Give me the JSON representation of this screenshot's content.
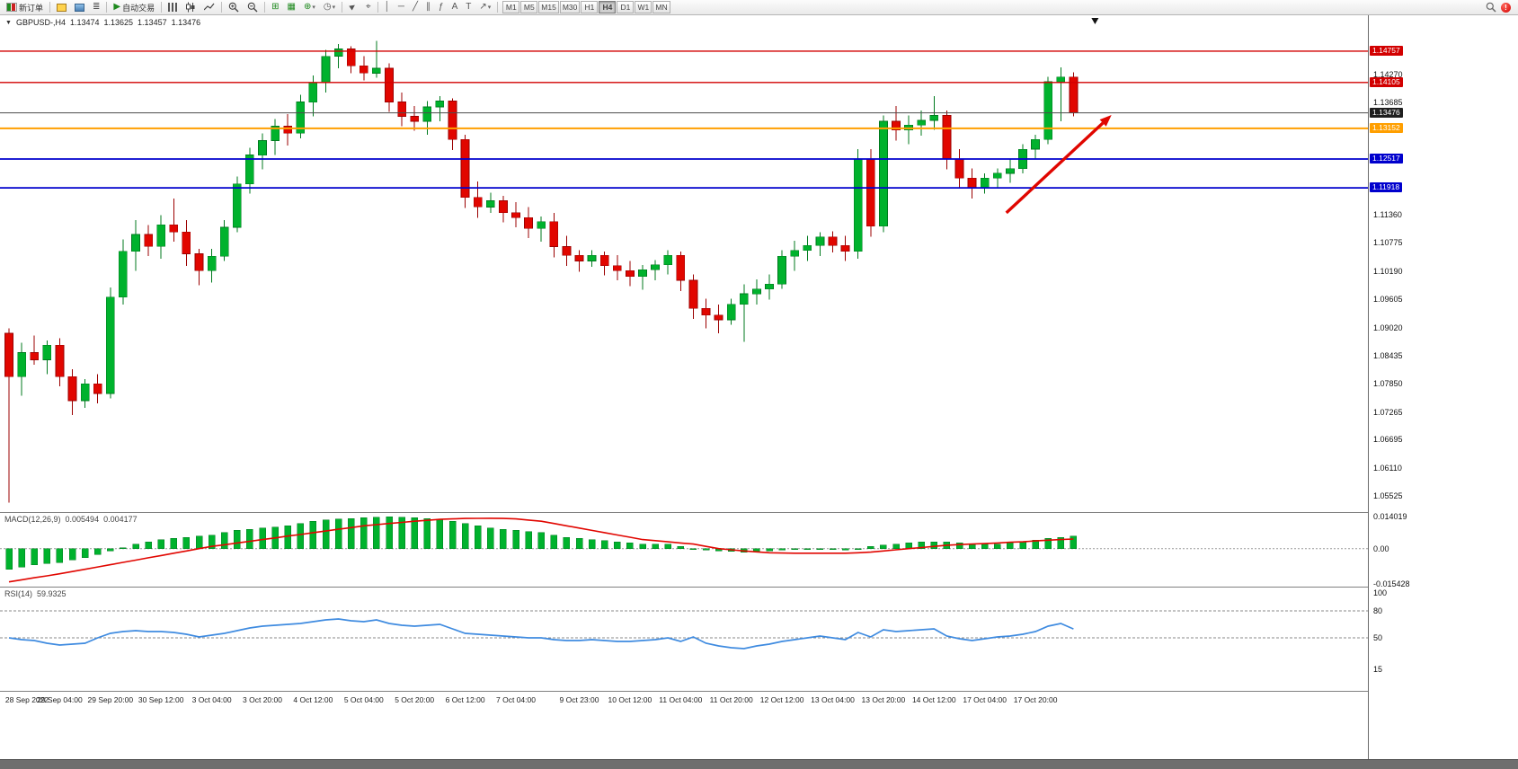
{
  "icons": {
    "collapse": "▼",
    "autotrading_play": "▶",
    "tile": "⊞",
    "grid": "▦",
    "add_indicator": "⊕",
    "clock": "◷",
    "cursor": "►",
    "crosshair": "⌖",
    "vline": "│",
    "hline": "─",
    "trendline": "╱",
    "channel": "∥",
    "fibonacci": "ƒ",
    "text_tool": "A",
    "label_tool": "T",
    "arrow_tool": "↗",
    "caret": "▾",
    "navigator": "≣",
    "alert": "!"
  },
  "toolbar": {
    "new_order_label": "新订单",
    "autotrading_label": "自动交易",
    "timeframes": [
      "M1",
      "M5",
      "M15",
      "M30",
      "H1",
      "H4",
      "D1",
      "W1",
      "MN"
    ],
    "active_timeframe": "H4"
  },
  "header": {
    "symbol": "GBPUSD-,H4",
    "open": "1.13474",
    "high": "1.13625",
    "low": "1.13457",
    "close": "1.13476"
  },
  "chart_data": {
    "type": "candlestick",
    "symbol": "GBPUSD-",
    "timeframe": "H4",
    "ohlc_header": {
      "open": 1.13474,
      "high": 1.13625,
      "low": 1.13457,
      "close": 1.13476
    },
    "y_max": 1.155,
    "y_min": 1.0519,
    "axis_ticks": [
      "1.14270",
      "1.13685",
      "1.11360",
      "1.10775",
      "1.10190",
      "1.09605",
      "1.09020",
      "1.08435",
      "1.07850",
      "1.07265",
      "1.06695",
      "1.06110",
      "1.05525"
    ],
    "hlines": [
      {
        "price": 1.14757,
        "label": "1.14757",
        "line_color": "#d20000",
        "box_color": "#d20000",
        "width": 1.4,
        "current": false
      },
      {
        "price": 1.14105,
        "label": "1.14105",
        "line_color": "#d20000",
        "box_color": "#d20000",
        "width": 1.4,
        "current": false
      },
      {
        "price": 1.13476,
        "label": "1.13476",
        "line_color": "#4d4d4d",
        "box_color": "#1f1f1f",
        "width": 1,
        "current": true
      },
      {
        "price": 1.13152,
        "label": "1.13152",
        "line_color": "#ff9f00",
        "box_color": "#ff9f00",
        "width": 2,
        "current": false
      },
      {
        "price": 1.12517,
        "label": "1.12517",
        "line_color": "#0000cd",
        "box_color": "#0000cd",
        "width": 1.8,
        "current": false
      },
      {
        "price": 1.11918,
        "label": "1.11918",
        "line_color": "#0000cd",
        "box_color": "#0000cd",
        "width": 1.8,
        "current": false
      }
    ],
    "candles": [
      [
        1.089,
        1.09,
        1.0539,
        1.08
      ],
      [
        1.08,
        1.087,
        1.076,
        1.085
      ],
      [
        1.085,
        1.0885,
        1.0825,
        1.0835
      ],
      [
        1.0835,
        1.0875,
        1.0805,
        1.0865
      ],
      [
        1.0865,
        1.088,
        1.078,
        1.08
      ],
      [
        1.08,
        1.0815,
        1.072,
        1.075
      ],
      [
        1.075,
        1.0795,
        1.0735,
        1.0785
      ],
      [
        1.0785,
        1.0805,
        1.0745,
        1.0765
      ],
      [
        1.0765,
        1.0985,
        1.0755,
        1.0965
      ],
      [
        1.0965,
        1.1085,
        1.095,
        1.106
      ],
      [
        1.106,
        1.1125,
        1.102,
        1.1095
      ],
      [
        1.1095,
        1.1115,
        1.105,
        1.107
      ],
      [
        1.107,
        1.1135,
        1.1045,
        1.1115
      ],
      [
        1.1115,
        1.117,
        1.108,
        1.11
      ],
      [
        1.11,
        1.1125,
        1.103,
        1.1055
      ],
      [
        1.1055,
        1.1065,
        1.099,
        1.102
      ],
      [
        1.102,
        1.1065,
        1.0995,
        1.105
      ],
      [
        1.105,
        1.1125,
        1.104,
        1.111
      ],
      [
        1.111,
        1.1215,
        1.11,
        1.12
      ],
      [
        1.12,
        1.1275,
        1.118,
        1.126
      ],
      [
        1.126,
        1.1305,
        1.123,
        1.129
      ],
      [
        1.129,
        1.1335,
        1.126,
        1.132
      ],
      [
        1.132,
        1.1345,
        1.128,
        1.1305
      ],
      [
        1.1305,
        1.1385,
        1.1295,
        1.137
      ],
      [
        1.137,
        1.1425,
        1.134,
        1.141
      ],
      [
        1.141,
        1.1478,
        1.139,
        1.1465
      ],
      [
        1.1465,
        1.149,
        1.144,
        1.148
      ],
      [
        1.148,
        1.1486,
        1.143,
        1.1445
      ],
      [
        1.1445,
        1.1465,
        1.1415,
        1.143
      ],
      [
        1.143,
        1.1497,
        1.142,
        1.144
      ],
      [
        1.144,
        1.145,
        1.135,
        1.137
      ],
      [
        1.137,
        1.139,
        1.132,
        1.134
      ],
      [
        1.134,
        1.1362,
        1.131,
        1.133
      ],
      [
        1.133,
        1.1372,
        1.1302,
        1.136
      ],
      [
        1.136,
        1.1382,
        1.133,
        1.1372
      ],
      [
        1.1372,
        1.1378,
        1.127,
        1.1292
      ],
      [
        1.1292,
        1.1302,
        1.115,
        1.1172
      ],
      [
        1.1172,
        1.1205,
        1.113,
        1.1152
      ],
      [
        1.1152,
        1.1182,
        1.114,
        1.1165
      ],
      [
        1.1165,
        1.1175,
        1.112,
        1.114
      ],
      [
        1.114,
        1.1162,
        1.111,
        1.113
      ],
      [
        1.113,
        1.1152,
        1.1088,
        1.1108
      ],
      [
        1.1108,
        1.1132,
        1.108,
        1.1122
      ],
      [
        1.1122,
        1.114,
        1.1048,
        1.107
      ],
      [
        1.107,
        1.1092,
        1.103,
        1.1052
      ],
      [
        1.1052,
        1.1062,
        1.1018,
        1.104
      ],
      [
        1.104,
        1.1062,
        1.1028,
        1.1052
      ],
      [
        1.1052,
        1.106,
        1.101,
        1.103
      ],
      [
        1.103,
        1.1052,
        1.1,
        1.102
      ],
      [
        1.102,
        1.104,
        1.0988,
        1.1008
      ],
      [
        1.1008,
        1.1032,
        1.098,
        1.1022
      ],
      [
        1.1022,
        1.1042,
        1.1,
        1.1032
      ],
      [
        1.1032,
        1.1062,
        1.1012,
        1.1052
      ],
      [
        1.1052,
        1.106,
        1.0978,
        1.1
      ],
      [
        1.1,
        1.1012,
        1.092,
        1.0942
      ],
      [
        1.0942,
        1.0962,
        1.09,
        1.0928
      ],
      [
        1.0928,
        1.095,
        1.089,
        1.0918
      ],
      [
        1.0918,
        1.0962,
        1.0908,
        1.095
      ],
      [
        1.095,
        1.0992,
        1.0872,
        1.0972
      ],
      [
        1.0972,
        1.1002,
        1.095,
        1.0982
      ],
      [
        1.0982,
        1.1012,
        1.096,
        1.0992
      ],
      [
        1.0992,
        1.1062,
        1.0982,
        1.105
      ],
      [
        1.105,
        1.1082,
        1.102,
        1.1062
      ],
      [
        1.1062,
        1.1092,
        1.104,
        1.1072
      ],
      [
        1.1072,
        1.11,
        1.105,
        1.109
      ],
      [
        1.109,
        1.1102,
        1.1058,
        1.1072
      ],
      [
        1.1072,
        1.1092,
        1.104,
        1.106
      ],
      [
        1.106,
        1.1272,
        1.1045,
        1.1252
      ],
      [
        1.1252,
        1.1272,
        1.109,
        1.1112
      ],
      [
        1.1112,
        1.1342,
        1.11,
        1.133
      ],
      [
        1.133,
        1.1362,
        1.129,
        1.1312
      ],
      [
        1.1312,
        1.1342,
        1.1282,
        1.1322
      ],
      [
        1.1322,
        1.1352,
        1.13,
        1.1332
      ],
      [
        1.1332,
        1.1382,
        1.1312,
        1.1342
      ],
      [
        1.1342,
        1.1352,
        1.123,
        1.1252
      ],
      [
        1.1252,
        1.1272,
        1.119,
        1.1212
      ],
      [
        1.1212,
        1.1232,
        1.117,
        1.1192
      ],
      [
        1.1192,
        1.1222,
        1.118,
        1.1212
      ],
      [
        1.1212,
        1.1232,
        1.119,
        1.1222
      ],
      [
        1.1222,
        1.1252,
        1.1202,
        1.1232
      ],
      [
        1.1232,
        1.1282,
        1.1222,
        1.1272
      ],
      [
        1.1272,
        1.1302,
        1.1252,
        1.1292
      ],
      [
        1.1292,
        1.1422,
        1.1282,
        1.1412
      ],
      [
        1.1412,
        1.1442,
        1.133,
        1.1422
      ],
      [
        1.1422,
        1.1432,
        1.134,
        1.13476
      ]
    ],
    "time_labels": [
      {
        "bar": 0,
        "text": "28 Sep 2022"
      },
      {
        "bar": 4,
        "text": "29 Sep 04:00"
      },
      {
        "bar": 8,
        "text": "29 Sep 20:00"
      },
      {
        "bar": 12,
        "text": "30 Sep 12:00"
      },
      {
        "bar": 16,
        "text": "3 Oct 04:00"
      },
      {
        "bar": 20,
        "text": "3 Oct 20:00"
      },
      {
        "bar": 24,
        "text": "4 Oct 12:00"
      },
      {
        "bar": 28,
        "text": "5 Oct 04:00"
      },
      {
        "bar": 32,
        "text": "5 Oct 20:00"
      },
      {
        "bar": 36,
        "text": "6 Oct 12:00"
      },
      {
        "bar": 40,
        "text": "7 Oct 04:00"
      },
      {
        "bar": 45,
        "text": "9 Oct 23:00"
      },
      {
        "bar": 49,
        "text": "10 Oct 12:00"
      },
      {
        "bar": 53,
        "text": "11 Oct 04:00"
      },
      {
        "bar": 57,
        "text": "11 Oct 20:00"
      },
      {
        "bar": 61,
        "text": "12 Oct 12:00"
      },
      {
        "bar": 65,
        "text": "13 Oct 04:00"
      },
      {
        "bar": 69,
        "text": "13 Oct 20:00"
      },
      {
        "bar": 73,
        "text": "14 Oct 12:00"
      },
      {
        "bar": 77,
        "text": "17 Oct 04:00"
      },
      {
        "bar": 81,
        "text": "17 Oct 20:00"
      }
    ],
    "arrow": {
      "from_bar": 78.7,
      "from_price": 1.114,
      "to_bar": 87,
      "to_price": 1.1343,
      "color": "#e00600"
    },
    "marker_bar": 85.7,
    "macd": {
      "title": "MACD(12,26,9)",
      "main_value": "0.005494",
      "signal_value": "0.004177",
      "v_max": 0.016,
      "v_min": -0.0166,
      "axis_ticks": [
        {
          "v": 0.014019,
          "text": "0.014019"
        },
        {
          "v": 0,
          "text": "0.00"
        },
        {
          "v": -0.015428,
          "text": "-0.015428"
        }
      ],
      "histogram": [
        -0.009,
        -0.008,
        -0.007,
        -0.0065,
        -0.006,
        -0.005,
        -0.004,
        -0.0025,
        -0.001,
        0.0005,
        0.002,
        0.003,
        0.004,
        0.0045,
        0.005,
        0.0055,
        0.006,
        0.007,
        0.008,
        0.0085,
        0.009,
        0.0095,
        0.01,
        0.011,
        0.012,
        0.0125,
        0.013,
        0.0132,
        0.0135,
        0.0138,
        0.014,
        0.0138,
        0.0135,
        0.0132,
        0.013,
        0.012,
        0.011,
        0.01,
        0.009,
        0.0085,
        0.008,
        0.0075,
        0.007,
        0.006,
        0.005,
        0.0045,
        0.004,
        0.0035,
        0.003,
        0.0025,
        0.002,
        0.002,
        0.002,
        0.001,
        0.0,
        -0.0005,
        -0.001,
        -0.0012,
        -0.0015,
        -0.0012,
        -0.001,
        -0.0005,
        0.0,
        0.0,
        0.0,
        -0.0002,
        -0.0005,
        0.0,
        0.001,
        0.0015,
        0.002,
        0.0025,
        0.003,
        0.003,
        0.003,
        0.0025,
        0.002,
        0.002,
        0.002,
        0.0025,
        0.003,
        0.0037,
        0.0045,
        0.005,
        0.0055
      ],
      "signal": [
        -0.0145,
        -0.0136,
        -0.0127,
        -0.0119,
        -0.011,
        -0.01,
        -0.009,
        -0.008,
        -0.007,
        -0.006,
        -0.005,
        -0.004,
        -0.003,
        -0.002,
        -0.001,
        0.0,
        0.001,
        0.0017,
        0.0025,
        0.0032,
        0.004,
        0.0047,
        0.0055,
        0.0062,
        0.007,
        0.0077,
        0.0085,
        0.0092,
        0.01,
        0.0105,
        0.011,
        0.0115,
        0.012,
        0.0124,
        0.0128,
        0.013,
        0.0132,
        0.01325,
        0.0133,
        0.0132,
        0.013,
        0.0125,
        0.012,
        0.011,
        0.01,
        0.009,
        0.008,
        0.007,
        0.006,
        0.005,
        0.004,
        0.0035,
        0.003,
        0.0025,
        0.002,
        0.001,
        0.0,
        -0.0005,
        -0.001,
        -0.0014,
        -0.0018,
        -0.0019,
        -0.002,
        -0.002,
        -0.002,
        -0.002,
        -0.002,
        -0.0018,
        -0.0015,
        -0.001,
        -0.0005,
        0.0,
        0.0005,
        0.001,
        0.0015,
        0.0018,
        0.002,
        0.0022,
        0.0025,
        0.0028,
        0.003,
        0.0034,
        0.0037,
        0.004,
        0.0042
      ]
    },
    "rsi": {
      "title": "RSI(14)",
      "value": "59.9325",
      "v_top": 107,
      "axis_ticks": [
        {
          "v": 100,
          "text": "100"
        },
        {
          "v": 80,
          "text": "80"
        },
        {
          "v": 50,
          "text": "50"
        },
        {
          "v": 15,
          "text": "15"
        }
      ],
      "levels": [
        80,
        50
      ],
      "series": [
        50,
        48,
        47,
        44,
        42,
        43,
        44,
        50,
        55,
        57,
        58,
        57,
        57,
        56,
        54,
        51,
        53,
        55,
        58,
        61,
        63,
        64,
        65,
        66,
        68,
        70,
        71,
        69,
        68,
        70,
        66,
        64,
        63,
        64,
        65,
        60,
        55,
        54,
        53,
        52,
        51,
        50,
        50,
        48,
        47,
        47,
        48,
        47,
        46,
        46,
        47,
        48,
        50,
        46,
        51,
        44,
        41,
        39,
        38,
        41,
        43,
        46,
        48,
        50,
        52,
        50,
        48,
        56,
        51,
        59,
        57,
        58,
        59,
        60,
        52,
        49,
        47,
        49,
        51,
        52,
        54,
        57,
        63,
        66,
        59.93
      ]
    },
    "colors": {
      "up": "#00B22D",
      "up_dark": "#007A1E",
      "down": "#E10600",
      "down_dark": "#9B0000",
      "macd_hist": "#00B22D",
      "macd_signal": "#E10600",
      "rsi_line": "#3F8BE0"
    }
  }
}
